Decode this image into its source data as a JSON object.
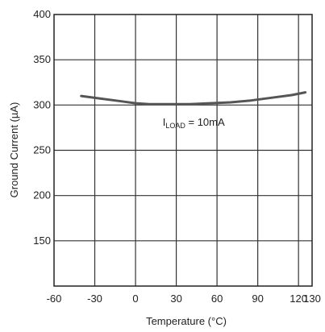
{
  "chart_data": {
    "type": "line",
    "title": "",
    "xlabel": "Temperature (°C)",
    "ylabel": "Ground Current (µA)",
    "xlim": [
      -60,
      130
    ],
    "ylim": [
      100,
      400
    ],
    "xticks": [
      -60,
      -30,
      0,
      30,
      60,
      90,
      120,
      130
    ],
    "yticks": [
      150,
      200,
      250,
      300,
      350,
      400
    ],
    "x_gridlines": [
      -30,
      0,
      30,
      60,
      90,
      120
    ],
    "y_gridlines": [
      150,
      200,
      250,
      300,
      350
    ],
    "grid": true,
    "series": [
      {
        "name": "",
        "color": "#555555",
        "x": [
          -40,
          -25,
          -10,
          0,
          10,
          25,
          40,
          55,
          70,
          85,
          100,
          115,
          125
        ],
        "y": [
          310,
          307,
          304,
          302,
          301,
          301,
          301,
          302,
          303,
          305,
          308,
          311,
          314
        ]
      }
    ],
    "annotations": [
      {
        "text": "I",
        "subscript": "LOAD",
        "suffix": " = 10mA",
        "x": 20,
        "y": 277
      }
    ]
  }
}
